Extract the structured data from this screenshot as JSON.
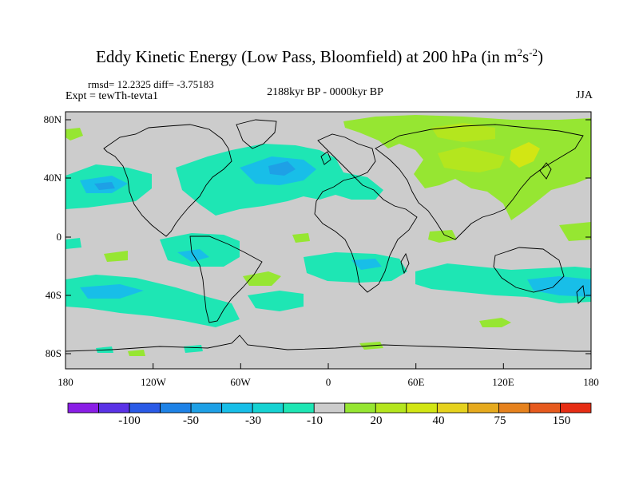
{
  "title": {
    "main": "Eddy Kinetic Energy (Low Pass, Bloomfield) at 200 hPa (in m",
    "sup1": "2",
    "mid": "s",
    "sup2": "-2",
    "end": ")"
  },
  "stats": "rmsd= 12.2325 diff= -3.75183",
  "expt": "Expt = tewTh-tevta1",
  "period": "2188kyr BP - 0000kyr BP",
  "season": "JJA",
  "axes": {
    "x_ticks": [
      "180",
      "120W",
      "60W",
      "0",
      "60E",
      "120E",
      "180"
    ],
    "y_ticks": [
      "80N",
      "40N",
      "0",
      "40S",
      "80S"
    ]
  },
  "colorbar": {
    "colors": [
      "#8a1ee6",
      "#5a32e6",
      "#2a5ae6",
      "#1e82e6",
      "#1ea0e6",
      "#18bee8",
      "#16d2d2",
      "#1ee6b4",
      "#cccccc",
      "#96e632",
      "#b4e61e",
      "#d2e614",
      "#e6d21e",
      "#e6aa1e",
      "#e6821e",
      "#e65a1e",
      "#e62d14"
    ],
    "labels": [
      "-100",
      "-50",
      "-30",
      "-10",
      "20",
      "40",
      "75",
      "150"
    ]
  },
  "palette": {
    "land_bg": "#cccccc",
    "cyan": "#1ee6b4",
    "cyan_dark": "#16d2d2",
    "blue": "#18bee8",
    "green": "#96e632",
    "green_dark": "#b4e61e",
    "yellow": "#d2e614"
  }
}
